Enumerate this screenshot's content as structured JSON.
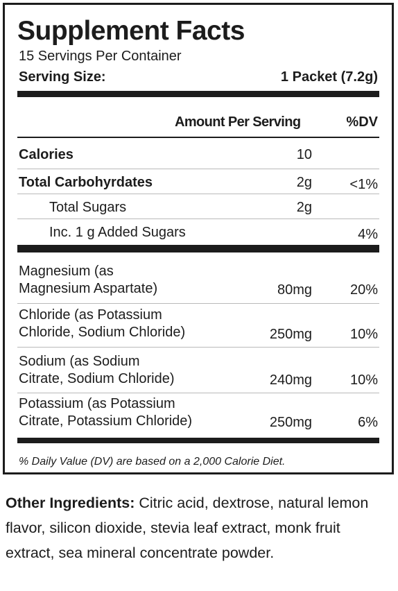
{
  "title": "Supplement Facts",
  "servings_per_container": "15 Servings Per Container",
  "serving_size": {
    "label": "Serving Size:",
    "value": "1 Packet (7.2g)"
  },
  "header": {
    "amount": "Amount Per Serving",
    "dv": "%DV"
  },
  "rows": [
    {
      "name": "Calories",
      "amount": "10",
      "dv": ""
    },
    {
      "name": "Total Carbohyrdates",
      "amount": "2g",
      "dv": "<1%"
    },
    {
      "name": "Total Sugars",
      "amount": "2g",
      "dv": ""
    },
    {
      "name": "Inc. 1 g Added Sugars",
      "amount": "",
      "dv": "4%"
    }
  ],
  "minerals": [
    {
      "line1": "Magnesium (as",
      "line2": "Magnesium Aspartate)",
      "amount": "80mg",
      "dv": "20%"
    },
    {
      "line1": "Chloride (as Potassium",
      "line2": "Chloride, Sodium Chloride)",
      "amount": "250mg",
      "dv": "10%"
    },
    {
      "line1": "Sodium (as Sodium",
      "line2": "Citrate, Sodium Chloride)",
      "amount": "240mg",
      "dv": "10%"
    },
    {
      "line1": "Potassium (as Potassium",
      "line2": "Citrate, Potassium Chloride)",
      "amount": "250mg",
      "dv": "6%"
    }
  ],
  "footnote": "% Daily Value (DV) are based on a 2,000 Calorie Diet.",
  "other_ingredients": {
    "label": "Other Ingredients:",
    "text": " Citric acid, dextrose, natural lemon flavor, silicon dioxide, stevia leaf extract, monk fruit extract, sea mineral concentrate powder."
  }
}
